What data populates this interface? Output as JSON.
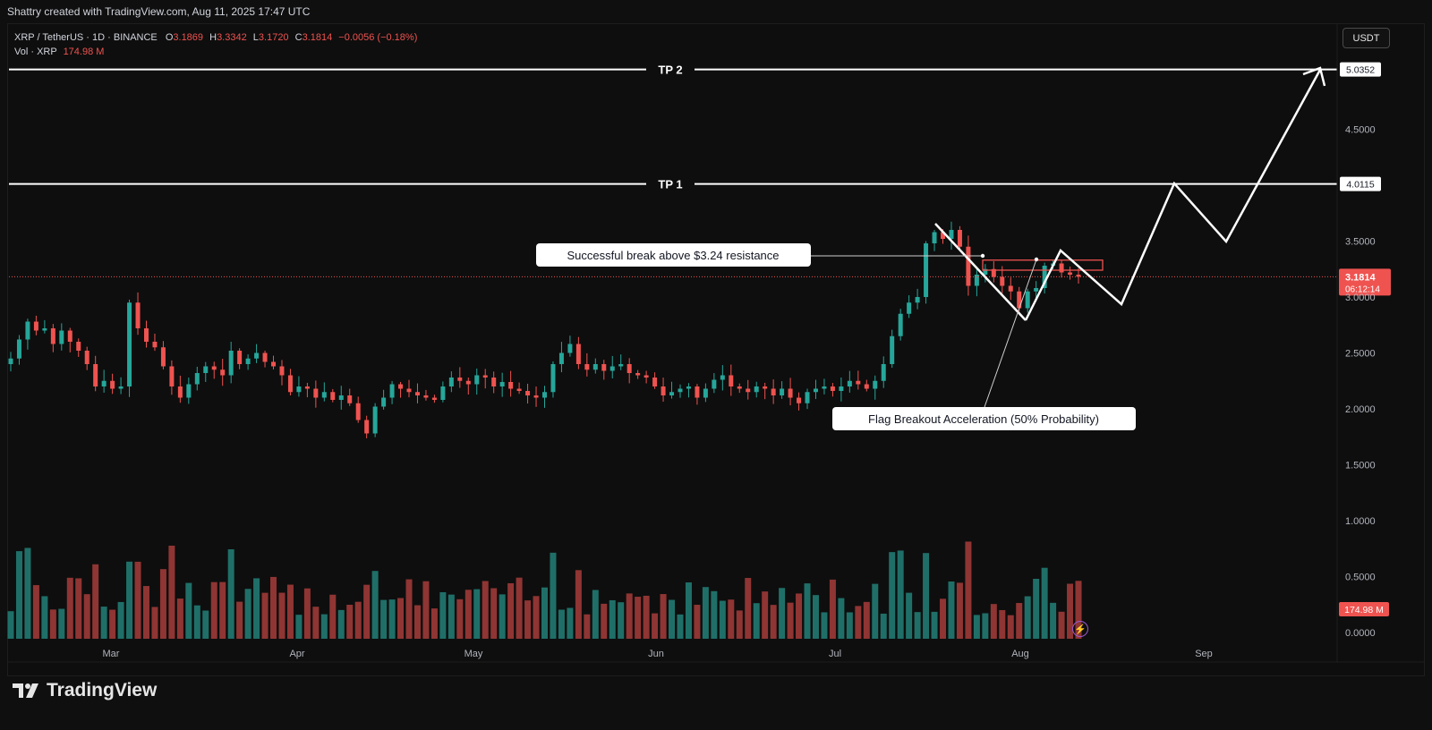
{
  "caption": "Shattry created with TradingView.com, Aug 11, 2025 17:47 UTC",
  "legend": {
    "symbol": "XRP / TetherUS · 1D · BINANCE",
    "o_label": "O",
    "o_val": "3.1869",
    "h_label": "H",
    "h_val": "3.3342",
    "l_label": "L",
    "l_val": "3.1720",
    "c_label": "C",
    "c_val": "3.1814",
    "change": "−0.0056 (−0.18%)",
    "vol_label": "Vol · XRP",
    "vol_val": "174.98 M"
  },
  "currency_button": "USDT",
  "brand": "TradingView",
  "colors": {
    "up": "#26a69a",
    "down": "#ef5350",
    "vol_up": "#1f6f68",
    "vol_down": "#8f3533",
    "bg": "#0e0e0e",
    "line": "#ffffff"
  },
  "chart_data": {
    "type": "candlestick",
    "price_axis": {
      "ticks": [
        2.0,
        2.5,
        3.0,
        3.5,
        4.5
      ],
      "tick_labels": [
        "2.0000",
        "2.5000",
        "3.0000",
        "3.5000",
        "4.5000"
      ]
    },
    "volume_axis": {
      "tick_labels": [
        "0.0000",
        "0.5000",
        "1.0000",
        "1.5000"
      ],
      "ticks": [
        0,
        0.5,
        1.0,
        1.5
      ]
    },
    "x_tick_labels": [
      "Mar",
      "Apr",
      "May",
      "Jun",
      "Jul",
      "Aug",
      "Sep"
    ],
    "tp_lines": [
      {
        "label": "TP 2",
        "price": 5.0352,
        "price_label": "5.0352"
      },
      {
        "label": "TP 1",
        "price": 4.0115,
        "price_label": "4.0115"
      }
    ],
    "current_price": {
      "value": 3.1814,
      "label": "3.1814",
      "countdown": "06:12:14"
    },
    "current_volume_label": "174.98 M",
    "annotations": [
      {
        "text": "Successful break above $3.24 resistance"
      },
      {
        "text": "Flag Breakout Acceleration (50% Probability)"
      }
    ],
    "resistance_zone": {
      "low": 3.24,
      "high": 3.33
    },
    "closes": [
      2.45,
      2.62,
      2.78,
      2.7,
      2.72,
      2.58,
      2.7,
      2.6,
      2.52,
      2.4,
      2.2,
      2.25,
      2.18,
      2.2,
      2.95,
      2.72,
      2.6,
      2.55,
      2.38,
      2.2,
      2.1,
      2.22,
      2.32,
      2.38,
      2.35,
      2.3,
      2.52,
      2.4,
      2.45,
      2.5,
      2.42,
      2.38,
      2.3,
      2.15,
      2.2,
      2.18,
      2.1,
      2.15,
      2.08,
      2.12,
      2.05,
      1.9,
      1.78,
      2.02,
      2.1,
      2.22,
      2.18,
      2.15,
      2.12,
      2.1,
      2.08,
      2.2,
      2.28,
      2.25,
      2.22,
      2.3,
      2.28,
      2.2,
      2.24,
      2.18,
      2.16,
      2.12,
      2.1,
      2.15,
      2.4,
      2.5,
      2.58,
      2.4,
      2.35,
      2.4,
      2.34,
      2.38,
      2.4,
      2.32,
      2.3,
      2.28,
      2.2,
      2.12,
      2.15,
      2.18,
      2.2,
      2.1,
      2.18,
      2.26,
      2.3,
      2.2,
      2.18,
      2.15,
      2.2,
      2.18,
      2.12,
      2.18,
      2.1,
      2.05,
      2.15,
      2.18,
      2.2,
      2.16,
      2.2,
      2.25,
      2.22,
      2.18,
      2.25,
      2.4,
      2.65,
      2.85,
      2.95,
      3.0,
      3.48,
      3.58,
      3.52,
      3.6,
      3.45,
      3.1,
      3.2,
      3.25,
      3.18,
      3.1,
      3.05,
      2.9,
      3.05,
      3.08,
      3.28,
      3.3,
      3.22,
      3.2,
      3.1814
    ]
  }
}
